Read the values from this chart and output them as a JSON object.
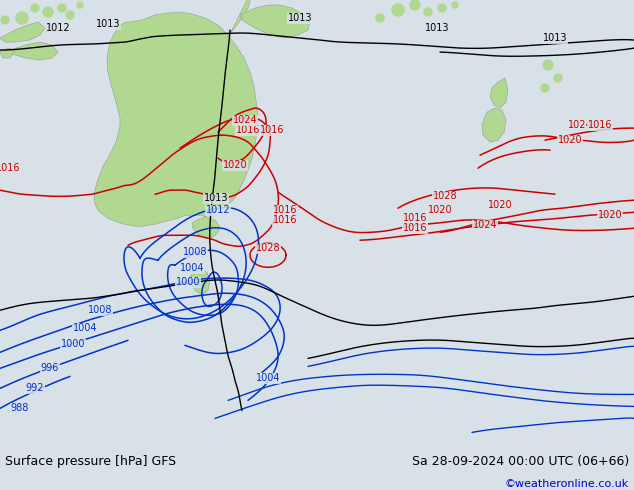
{
  "title_left": "Surface pressure [hPa] GFS",
  "title_right": "Sa 28-09-2024 00:00 UTC (06+66)",
  "credit": "©weatheronline.co.uk",
  "bg_color": "#d8e0e8",
  "land_color": "#b0d890",
  "ocean_color": "#d8e0e8",
  "c_black": "#000000",
  "c_red": "#cc0000",
  "c_blue": "#0033cc",
  "c_dkblue": "#0000aa",
  "bottom_bg": "#d8d8d8",
  "bottom_text": "#000000",
  "credit_color": "#0000cc",
  "fs_title": 9,
  "fs_credit": 8,
  "fs_label": 7
}
